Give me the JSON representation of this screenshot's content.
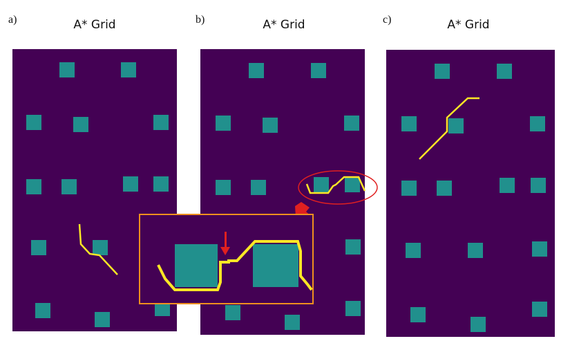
{
  "panels": [
    {
      "letter": "a)",
      "title": "A* Grid"
    },
    {
      "letter": "b)",
      "title": "A* Grid"
    },
    {
      "letter": "c)",
      "title": "A* Grid"
    }
  ],
  "colors": {
    "background": "#440154",
    "obstacle": "#21908d",
    "path": "#fde725",
    "highlight_ellipse": "#e02020",
    "inset_border": "#f0901e",
    "arrow": "#e02020"
  }
}
